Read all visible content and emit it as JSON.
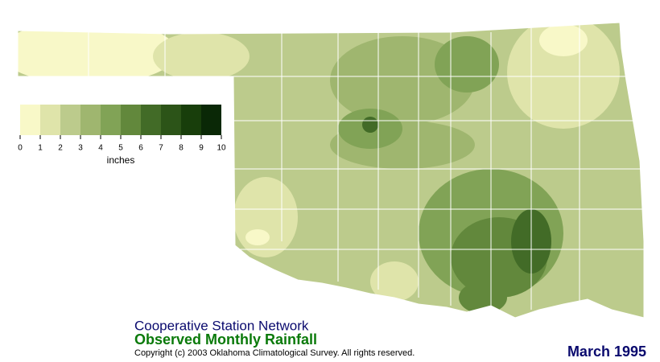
{
  "map": {
    "legend": {
      "colors": [
        "#f8f8c8",
        "#dfe4aa",
        "#bccb8c",
        "#9fb66f",
        "#81a356",
        "#62883c",
        "#426b27",
        "#2c5418",
        "#183e0b",
        "#0a2806"
      ],
      "ticks": [
        0,
        1,
        2,
        3,
        4,
        5,
        6,
        7,
        8,
        9,
        10
      ],
      "unit": "inches"
    },
    "network": "Cooperative Station Network",
    "title": "Observed Monthly Rainfall",
    "copyright": "Copyright (c) 2003 Oklahoma Climatological Survey. All rights reserved.",
    "date": "March 1995"
  }
}
